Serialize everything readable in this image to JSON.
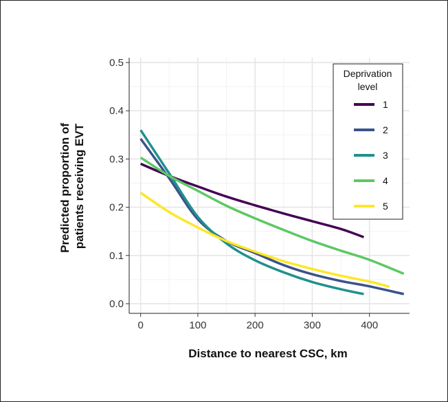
{
  "chart_data": {
    "type": "line",
    "title": "",
    "xlabel": "Distance to nearest CSC, km",
    "ylabel_lines": [
      "Predicted proportion of",
      "patients receiving EVT"
    ],
    "xlim": [
      -20,
      470
    ],
    "ylim": [
      -0.02,
      0.51
    ],
    "x_ticks": [
      0,
      100,
      200,
      300,
      400
    ],
    "x_tick_labels": [
      "0",
      "100",
      "200",
      "300",
      "400"
    ],
    "y_ticks": [
      0.0,
      0.1,
      0.2,
      0.3,
      0.4,
      0.5
    ],
    "y_tick_labels": [
      "0.0",
      "0.1",
      "0.2",
      "0.3",
      "0.4",
      "0.5"
    ],
    "grid": true,
    "legend": {
      "title_lines": [
        "Deprivation",
        "level"
      ],
      "placement": "top-right"
    },
    "series": [
      {
        "name": "1",
        "color": "#440154",
        "x": [
          0,
          50,
          100,
          150,
          200,
          250,
          300,
          350,
          390
        ],
        "y": [
          0.29,
          0.265,
          0.243,
          0.222,
          0.204,
          0.187,
          0.171,
          0.155,
          0.138
        ]
      },
      {
        "name": "2",
        "color": "#3B528B",
        "x": [
          0,
          50,
          100,
          150,
          200,
          250,
          300,
          350,
          400,
          460
        ],
        "y": [
          0.342,
          0.26,
          0.175,
          0.13,
          0.105,
          0.08,
          0.061,
          0.047,
          0.036,
          0.02
        ]
      },
      {
        "name": "3",
        "color": "#21908C",
        "x": [
          0,
          50,
          100,
          150,
          200,
          250,
          300,
          350,
          390
        ],
        "y": [
          0.36,
          0.27,
          0.18,
          0.125,
          0.09,
          0.065,
          0.045,
          0.03,
          0.02
        ]
      },
      {
        "name": "4",
        "color": "#5DC863",
        "x": [
          0,
          50,
          100,
          150,
          200,
          250,
          300,
          350,
          400,
          460
        ],
        "y": [
          0.303,
          0.265,
          0.234,
          0.203,
          0.177,
          0.153,
          0.13,
          0.11,
          0.091,
          0.062
        ]
      },
      {
        "name": "5",
        "color": "#FDE725",
        "x": [
          0,
          50,
          100,
          150,
          200,
          250,
          300,
          350,
          400,
          435
        ],
        "y": [
          0.23,
          0.19,
          0.158,
          0.13,
          0.108,
          0.088,
          0.072,
          0.058,
          0.046,
          0.035
        ]
      }
    ]
  }
}
